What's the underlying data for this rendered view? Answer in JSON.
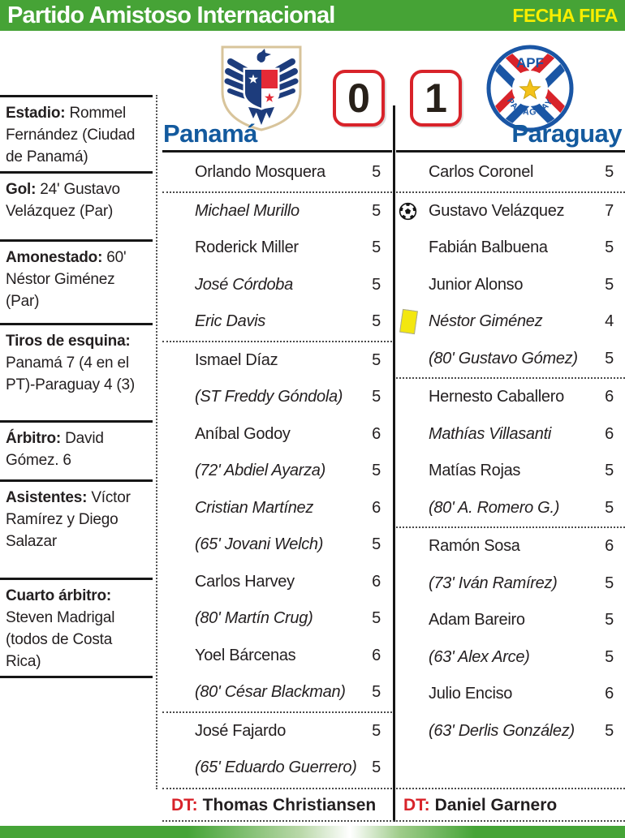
{
  "header": {
    "title": "Partido Amistoso Internacional",
    "badge": "FECHA FIFA"
  },
  "colors": {
    "header_green": "#46a336",
    "badge_yellow": "#f8ee00",
    "team_blue": "#135a9e",
    "accent_red": "#d8232a",
    "text_dark": "#231f20",
    "yellow_card": "#f3e70f",
    "panama_crest_blue": "#1d3c7c",
    "panama_crest_red": "#e42a36",
    "panama_crest_tan": "#d8c49b",
    "paraguay_crest_blue": "#1a56a5",
    "paraguay_crest_red": "#d8232a",
    "paraguay_star_gold": "#f4c21a"
  },
  "sidebar": {
    "sections": [
      {
        "label": "Estadio:",
        "text": "Rommel Fernández (Ciudad de Panamá)"
      },
      {
        "label": "Gol:",
        "text": "24' Gustavo Velázquez (Par)"
      },
      {
        "label": "Amonestado:",
        "text": "60' Néstor Giménez (Par)"
      },
      {
        "label": "Tiros de esquina:",
        "text": "Panamá 7 (4 en el PT)-Paraguay 4 (3)"
      },
      {
        "label": "Árbitro:",
        "text": "David Gómez. 6"
      },
      {
        "label": "Asistentes:",
        "text": "Víctor Ramírez y Diego Salazar"
      },
      {
        "label": "Cuarto árbitro:",
        "text": "Steven Madrigal (todos de Costa Rica)"
      }
    ]
  },
  "scoreboard": {
    "home_team": "Panamá",
    "away_team": "Paraguay",
    "home_score": "0",
    "away_score": "1",
    "apf_label": "APF",
    "paraguay_arc_label": "PARAGUAY"
  },
  "match": {
    "home": {
      "dt_label": "DT:",
      "dt_name": "Thomas Christiansen",
      "groups": [
        [
          {
            "name": "Orlando Mosquera",
            "rating": "5",
            "italic": false,
            "icon": null
          }
        ],
        [
          {
            "name": "Michael Murillo",
            "rating": "5",
            "italic": true,
            "icon": null
          },
          {
            "name": "Roderick Miller",
            "rating": "5",
            "italic": false,
            "icon": null
          },
          {
            "name": "José Córdoba",
            "rating": "5",
            "italic": true,
            "icon": null
          },
          {
            "name": "Eric Davis",
            "rating": "5",
            "italic": true,
            "icon": null
          }
        ],
        [
          {
            "name": "Ismael Díaz",
            "rating": "5",
            "italic": false,
            "icon": null
          },
          {
            "name": "(ST Freddy Góndola)",
            "rating": "5",
            "italic": true,
            "icon": null
          },
          {
            "name": "Aníbal Godoy",
            "rating": "6",
            "italic": false,
            "icon": null
          },
          {
            "name": "(72' Abdiel Ayarza)",
            "rating": "5",
            "italic": true,
            "icon": null
          },
          {
            "name": "Cristian Martínez",
            "rating": "6",
            "italic": true,
            "icon": null
          },
          {
            "name": "(65' Jovani Welch)",
            "rating": "5",
            "italic": true,
            "icon": null
          },
          {
            "name": "Carlos Harvey",
            "rating": "6",
            "italic": false,
            "icon": null
          },
          {
            "name": "(80' Martín Crug)",
            "rating": "5",
            "italic": true,
            "icon": null
          },
          {
            "name": "Yoel Bárcenas",
            "rating": "6",
            "italic": false,
            "icon": null
          },
          {
            "name": "(80' César Blackman)",
            "rating": "5",
            "italic": true,
            "icon": null
          }
        ],
        [
          {
            "name": "José Fajardo",
            "rating": "5",
            "italic": false,
            "icon": null
          },
          {
            "name": "(65' Eduardo Guerrero)",
            "rating": "5",
            "italic": true,
            "icon": null
          }
        ]
      ]
    },
    "away": {
      "dt_label": "DT:",
      "dt_name": "Daniel Garnero",
      "groups": [
        [
          {
            "name": "Carlos Coronel",
            "rating": "5",
            "italic": false,
            "icon": null
          }
        ],
        [
          {
            "name": "Gustavo Velázquez",
            "rating": "7",
            "italic": false,
            "icon": "goal"
          },
          {
            "name": "Fabián Balbuena",
            "rating": "5",
            "italic": false,
            "icon": null
          },
          {
            "name": "Junior Alonso",
            "rating": "5",
            "italic": false,
            "icon": null
          },
          {
            "name": "Néstor Giménez",
            "rating": "4",
            "italic": true,
            "icon": "yellow-card"
          },
          {
            "name": "(80' Gustavo Gómez)",
            "rating": "5",
            "italic": true,
            "icon": null
          }
        ],
        [
          {
            "name": "Hernesto Caballero",
            "rating": "6",
            "italic": false,
            "icon": null
          },
          {
            "name": "Mathías Villasanti",
            "rating": "6",
            "italic": true,
            "icon": null
          },
          {
            "name": "Matías Rojas",
            "rating": "5",
            "italic": false,
            "icon": null
          },
          {
            "name": "(80' A. Romero G.)",
            "rating": "5",
            "italic": true,
            "icon": null
          }
        ],
        [
          {
            "name": "Ramón Sosa",
            "rating": "6",
            "italic": false,
            "icon": null
          },
          {
            "name": "(73' Iván Ramírez)",
            "rating": "5",
            "italic": true,
            "icon": null
          },
          {
            "name": "Adam Bareiro",
            "rating": "5",
            "italic": false,
            "icon": null
          },
          {
            "name": "(63' Alex Arce)",
            "rating": "5",
            "italic": true,
            "icon": null
          },
          {
            "name": "Julio Enciso",
            "rating": "6",
            "italic": false,
            "icon": null
          },
          {
            "name": "(63' Derlis González)",
            "rating": "5",
            "italic": true,
            "icon": null
          }
        ]
      ]
    }
  }
}
